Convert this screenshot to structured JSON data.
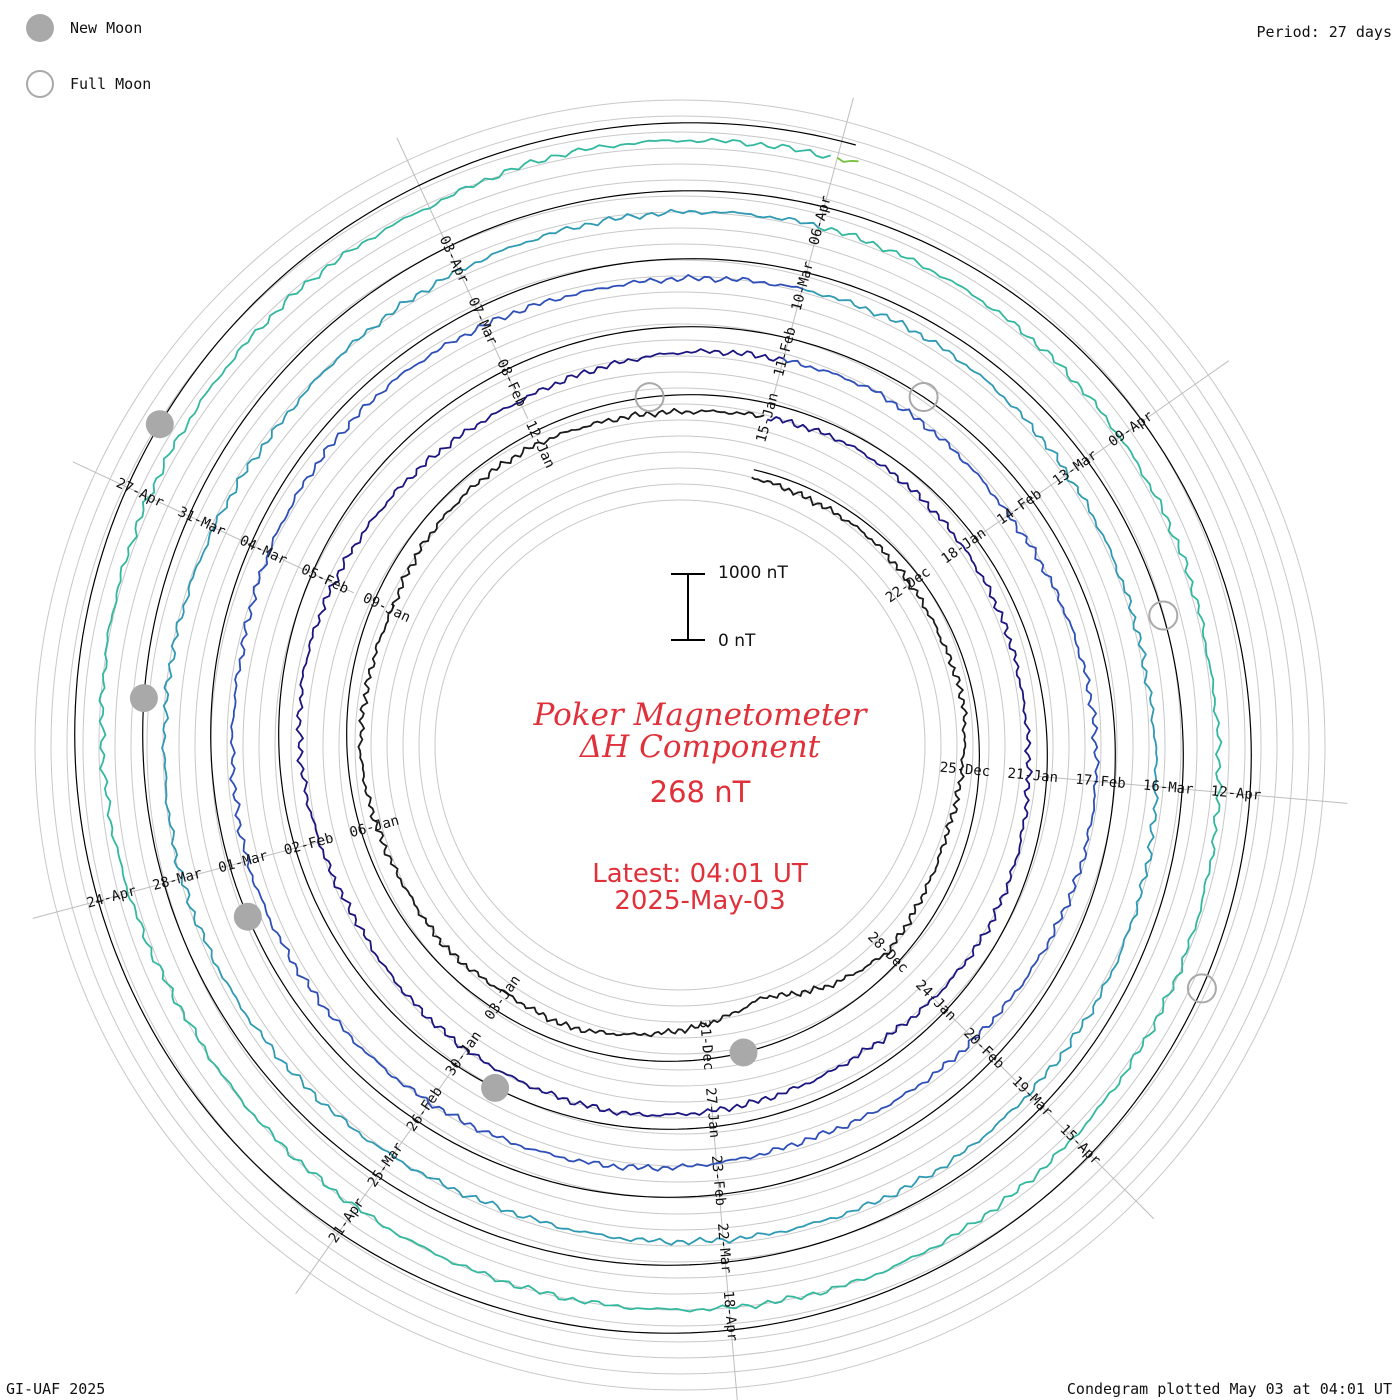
{
  "legend": {
    "new_moon_label": "New Moon",
    "full_moon_label": "Full Moon",
    "new_moon_color": "#a9a9a9",
    "full_moon_color": "#a9a9a9"
  },
  "period_label": "Period: 27 days",
  "footer_left": "GI-UAF 2025",
  "footer_right": "Condegram plotted May 03 at 04:01 UT",
  "center": {
    "title_line1": "Poker Magnetometer",
    "title_line2": "ΔH Component",
    "current_value": "268 nT",
    "latest_line1": "Latest: 04:01 UT",
    "latest_line2": "2025-May-03",
    "text_color": "#e0303a"
  },
  "scale_bar": {
    "top_label": "1000 nT",
    "bottom_label": "0 nT"
  },
  "chart_data": {
    "type": "line",
    "subtype": "condegram spiral",
    "period_days": 27,
    "start_date": "2024-12-19",
    "end_date": "2025-05-03",
    "grid": true,
    "scale_nT": [
      0,
      1000
    ],
    "date_labels": [
      "22-Dec",
      "25-Dec",
      "28-Dec",
      "31-Dec",
      "03-Jan",
      "06-Jan",
      "09-Jan",
      "12-Jan",
      "15-Jan",
      "18-Jan",
      "21-Jan",
      "24-Jan",
      "27-Jan",
      "30-Jan",
      "02-Feb",
      "05-Feb",
      "08-Feb",
      "11-Feb",
      "14-Feb",
      "17-Feb",
      "20-Feb",
      "23-Feb",
      "26-Feb",
      "01-Mar",
      "04-Mar",
      "07-Mar",
      "10-Mar",
      "13-Mar",
      "16-Mar",
      "19-Mar",
      "22-Mar",
      "25-Mar",
      "28-Mar",
      "31-Mar",
      "03-Apr",
      "06-Apr",
      "09-Apr",
      "12-Apr",
      "15-Apr",
      "18-Apr",
      "21-Apr",
      "24-Apr",
      "27-Apr"
    ],
    "new_moons": [
      "2024-12-30",
      "2025-01-29",
      "2025-02-28",
      "2025-03-29",
      "2025-04-27"
    ],
    "full_moons": [
      "2025-01-13",
      "2025-02-12",
      "2025-03-14",
      "2025-04-13"
    ],
    "series_colors": [
      "#1a1a1a",
      "#1b1580",
      "#2f4fb8",
      "#2f9ab3",
      "#33b8a0",
      "#72c13a",
      "#b2a31a",
      "#c07a18",
      "#c85a1c",
      "#c41818"
    ],
    "delta_h_daily_nT": [
      120,
      150,
      140,
      180,
      200,
      170,
      260,
      330,
      300,
      220,
      410,
      720,
      520,
      380,
      260,
      300,
      240,
      280,
      250,
      200,
      260,
      300,
      220,
      180,
      190,
      240,
      260,
      210,
      170,
      200,
      230,
      260,
      300,
      280,
      240,
      220,
      260,
      320,
      280,
      240,
      200,
      240,
      280,
      350,
      420,
      380,
      320,
      300,
      360,
      420,
      480,
      520,
      460,
      380,
      340,
      300,
      360,
      420,
      380,
      320,
      280,
      300,
      360,
      420,
      460,
      520,
      480,
      420,
      380,
      340,
      320,
      300,
      280,
      320,
      360,
      300,
      260,
      240,
      280,
      320,
      300,
      260,
      240,
      280,
      360,
      420,
      460,
      400,
      340,
      300,
      280,
      260,
      300,
      340,
      380,
      420,
      380,
      340,
      300,
      280,
      320,
      360,
      420,
      480,
      440,
      400,
      360,
      320,
      300,
      340,
      380,
      420,
      460,
      520,
      480,
      440,
      400,
      360,
      320,
      300,
      340,
      380,
      420,
      460,
      500,
      540,
      480,
      420,
      380,
      360,
      340,
      320,
      360,
      268
    ]
  }
}
